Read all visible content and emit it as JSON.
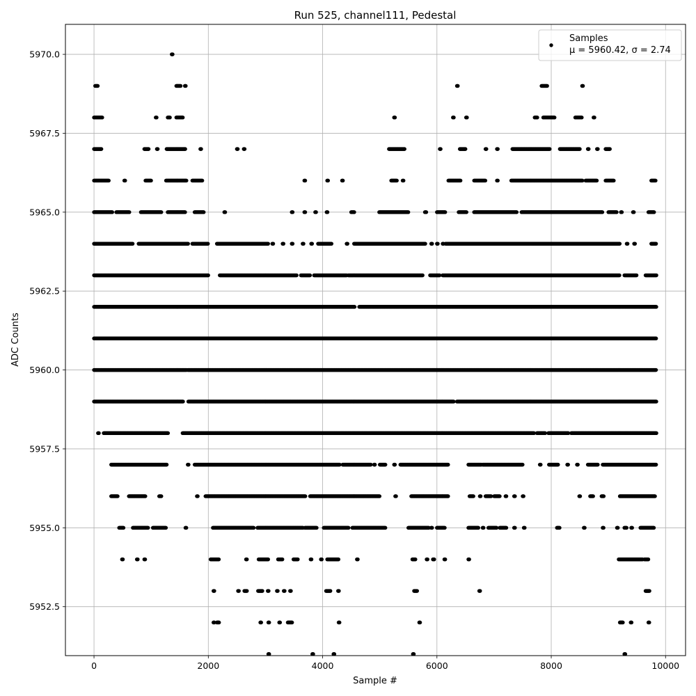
{
  "chart_data": {
    "type": "scatter",
    "title": "Run 525, channel111, Pedestal",
    "xlabel": "Sample #",
    "ylabel": "ADC Counts",
    "xlim": [
      -500,
      10350
    ],
    "ylim": [
      5950.95,
      5970.95
    ],
    "x_ticks": [
      0,
      2000,
      4000,
      6000,
      8000,
      10000
    ],
    "x_tick_labels": [
      "0",
      "2000",
      "4000",
      "6000",
      "8000",
      "10000"
    ],
    "y_ticks": [
      5952.5,
      5955.0,
      5957.5,
      5960.0,
      5962.5,
      5965.0,
      5967.5,
      5970.0
    ],
    "y_tick_labels": [
      "5952.5",
      "5955.0",
      "5957.5",
      "5960.0",
      "5962.5",
      "5965.0",
      "5967.5",
      "5970.0"
    ],
    "grid": true,
    "legend_position": "top-right",
    "marker_color": "#000000",
    "series": [
      {
        "name": "Samples",
        "stats_label": "μ = 5960.42, σ = 2.74",
        "level_ranges": [
          {
            "y": 5970,
            "x_ranges": [
              [
                1360,
                1380
              ]
            ]
          },
          {
            "y": 5969,
            "x_ranges": [
              [
                20,
                70
              ],
              [
                1440,
                1520
              ],
              [
                1590,
                1610
              ],
              [
                6350,
                6370
              ],
              [
                7830,
                7930
              ],
              [
                8540,
                8560
              ]
            ]
          },
          {
            "y": 5968,
            "x_ranges": [
              [
                0,
                150
              ],
              [
                1080,
                1100
              ],
              [
                1290,
                1330
              ],
              [
                1440,
                1560
              ],
              [
                5250,
                5270
              ],
              [
                6280,
                6300
              ],
              [
                6510,
                6530
              ],
              [
                7710,
                7760
              ],
              [
                7860,
                8060
              ],
              [
                8420,
                8540
              ],
              [
                8740,
                8760
              ]
            ]
          },
          {
            "y": 5967,
            "x_ranges": [
              [
                0,
                130
              ],
              [
                880,
                960
              ],
              [
                1100,
                1120
              ],
              [
                1270,
                1600
              ],
              [
                1860,
                1880
              ],
              [
                2500,
                2520
              ],
              [
                2620,
                2640
              ],
              [
                5160,
                5440
              ],
              [
                6050,
                6070
              ],
              [
                6400,
                6500
              ],
              [
                6850,
                6870
              ],
              [
                7050,
                7070
              ],
              [
                7320,
                7980
              ],
              [
                8150,
                8500
              ],
              [
                8640,
                8660
              ],
              [
                8800,
                8820
              ],
              [
                8950,
                9030
              ]
            ]
          },
          {
            "y": 5966,
            "x_ranges": [
              [
                0,
                260
              ],
              [
                530,
                550
              ],
              [
                900,
                1000
              ],
              [
                1260,
                1620
              ],
              [
                1720,
                1900
              ],
              [
                3680,
                3700
              ],
              [
                4080,
                4100
              ],
              [
                4340,
                4360
              ],
              [
                5200,
                5300
              ],
              [
                5400,
                5420
              ],
              [
                6200,
                6420
              ],
              [
                6650,
                6850
              ],
              [
                7050,
                7070
              ],
              [
                7300,
                8550
              ],
              [
                8600,
                8800
              ],
              [
                8950,
                9100
              ],
              [
                9750,
                9830
              ]
            ]
          },
          {
            "y": 5965,
            "x_ranges": [
              [
                0,
                320
              ],
              [
                390,
                620
              ],
              [
                820,
                1180
              ],
              [
                1290,
                1600
              ],
              [
                1760,
                1920
              ],
              [
                2280,
                2300
              ],
              [
                3460,
                3480
              ],
              [
                3680,
                3700
              ],
              [
                3870,
                3890
              ],
              [
                4070,
                4090
              ],
              [
                4500,
                4560
              ],
              [
                4990,
                5500
              ],
              [
                5790,
                5820
              ],
              [
                6000,
                6150
              ],
              [
                6380,
                6520
              ],
              [
                6650,
                7400
              ],
              [
                7480,
                8900
              ],
              [
                9000,
                9150
              ],
              [
                9220,
                9240
              ],
              [
                9430,
                9450
              ],
              [
                9700,
                9800
              ]
            ]
          },
          {
            "y": 5964,
            "x_ranges": [
              [
                0,
                680
              ],
              [
                780,
                1650
              ],
              [
                1720,
                2000
              ],
              [
                2150,
                3050
              ],
              [
                3120,
                3140
              ],
              [
                3300,
                3320
              ],
              [
                3460,
                3480
              ],
              [
                3650,
                3670
              ],
              [
                3800,
                3820
              ],
              [
                3920,
                4160
              ],
              [
                4420,
                4440
              ],
              [
                4550,
                5800
              ],
              [
                5900,
                5920
              ],
              [
                6000,
                6020
              ],
              [
                6100,
                6120
              ],
              [
                6150,
                9200
              ],
              [
                9320,
                9340
              ],
              [
                9450,
                9470
              ],
              [
                9750,
                9840
              ]
            ]
          },
          {
            "y": 5963,
            "x_ranges": [
              [
                0,
                2000
              ],
              [
                2200,
                3550
              ],
              [
                3620,
                3780
              ],
              [
                3850,
                4420
              ],
              [
                4450,
                5750
              ],
              [
                5880,
                6050
              ],
              [
                6100,
                9200
              ],
              [
                9280,
                9500
              ],
              [
                9650,
                9840
              ]
            ]
          },
          {
            "y": 5962,
            "x_ranges": [
              [
                0,
                4560
              ],
              [
                4640,
                9840
              ]
            ]
          },
          {
            "y": 5961,
            "x_ranges": [
              [
                0,
                9840
              ]
            ]
          },
          {
            "y": 5960,
            "x_ranges": [
              [
                0,
                1620
              ],
              [
                1640,
                9840
              ]
            ]
          },
          {
            "y": 5959,
            "x_ranges": [
              [
                0,
                1560
              ],
              [
                1650,
                6300
              ],
              [
                6350,
                9840
              ]
            ]
          },
          {
            "y": 5958,
            "x_ranges": [
              [
                70,
                90
              ],
              [
                170,
                1300
              ],
              [
                1550,
                7700
              ],
              [
                7750,
                7900
              ],
              [
                7950,
                8300
              ],
              [
                8350,
                9840
              ]
            ]
          },
          {
            "y": 5957,
            "x_ranges": [
              [
                300,
                1280
              ],
              [
                1640,
                1660
              ],
              [
                1760,
                4300
              ],
              [
                4350,
                4850
              ],
              [
                4900,
                4920
              ],
              [
                5000,
                5100
              ],
              [
                5250,
                5270
              ],
              [
                5360,
                6200
              ],
              [
                6550,
                6780
              ],
              [
                6800,
                7500
              ],
              [
                7800,
                7820
              ],
              [
                7960,
                8120
              ],
              [
                8280,
                8300
              ],
              [
                8450,
                8470
              ],
              [
                8640,
                8820
              ],
              [
                8900,
                9840
              ]
            ]
          },
          {
            "y": 5956,
            "x_ranges": [
              [
                300,
                420
              ],
              [
                610,
                900
              ],
              [
                1140,
                1180
              ],
              [
                1800,
                1820
              ],
              [
                1950,
                3700
              ],
              [
                3780,
                5000
              ],
              [
                5270,
                5290
              ],
              [
                5550,
                6200
              ],
              [
                6570,
                6640
              ],
              [
                6750,
                6770
              ],
              [
                6850,
                6950
              ],
              [
                7000,
                7100
              ],
              [
                7200,
                7220
              ],
              [
                7350,
                7370
              ],
              [
                7500,
                7520
              ],
              [
                8490,
                8510
              ],
              [
                8680,
                8740
              ],
              [
                8880,
                8920
              ],
              [
                9200,
                9820
              ]
            ]
          },
          {
            "y": 5955,
            "x_ranges": [
              [
                440,
                520
              ],
              [
                680,
                950
              ],
              [
                1030,
                1260
              ],
              [
                1600,
                1620
              ],
              [
                2080,
                2800
              ],
              [
                2860,
                3660
              ],
              [
                3690,
                3900
              ],
              [
                4020,
                4460
              ],
              [
                4520,
                5100
              ],
              [
                5500,
                5860
              ],
              [
                5900,
                5920
              ],
              [
                6000,
                6140
              ],
              [
                6550,
                6730
              ],
              [
                6800,
                6820
              ],
              [
                6900,
                7050
              ],
              [
                7100,
                7220
              ],
              [
                7350,
                7370
              ],
              [
                7520,
                7540
              ],
              [
                8100,
                8150
              ],
              [
                8570,
                8590
              ],
              [
                8900,
                8920
              ],
              [
                9150,
                9170
              ],
              [
                9280,
                9320
              ],
              [
                9400,
                9420
              ],
              [
                9560,
                9800
              ]
            ]
          },
          {
            "y": 5954,
            "x_ranges": [
              [
                490,
                510
              ],
              [
                750,
                770
              ],
              [
                880,
                900
              ],
              [
                2040,
                2190
              ],
              [
                2660,
                2680
              ],
              [
                2880,
                3050
              ],
              [
                3220,
                3300
              ],
              [
                3490,
                3570
              ],
              [
                3790,
                3810
              ],
              [
                3970,
                3990
              ],
              [
                4080,
                4280
              ],
              [
                4600,
                4620
              ],
              [
                5570,
                5630
              ],
              [
                5820,
                5840
              ],
              [
                5930,
                5960
              ],
              [
                6130,
                6150
              ],
              [
                6550,
                6570
              ],
              [
                9180,
                9600
              ],
              [
                9630,
                9700
              ]
            ]
          },
          {
            "y": 5953,
            "x_ranges": [
              [
                2090,
                2110
              ],
              [
                2520,
                2540
              ],
              [
                2630,
                2680
              ],
              [
                2870,
                2950
              ],
              [
                3040,
                3060
              ],
              [
                3200,
                3220
              ],
              [
                3320,
                3340
              ],
              [
                3430,
                3450
              ],
              [
                4060,
                4140
              ],
              [
                4270,
                4290
              ],
              [
                5600,
                5660
              ],
              [
                6740,
                6760
              ],
              [
                9650,
                9720
              ]
            ]
          },
          {
            "y": 5952,
            "x_ranges": [
              [
                2090,
                2110
              ],
              [
                2150,
                2190
              ],
              [
                2910,
                2930
              ],
              [
                3050,
                3070
              ],
              [
                3240,
                3260
              ],
              [
                3390,
                3470
              ],
              [
                4280,
                4300
              ],
              [
                5690,
                5710
              ],
              [
                9200,
                9260
              ],
              [
                9390,
                9410
              ],
              [
                9700,
                9720
              ]
            ]
          },
          {
            "y": 5951,
            "x_ranges": [
              [
                3050,
                3070
              ],
              [
                3820,
                3840
              ],
              [
                4190,
                4210
              ],
              [
                5580,
                5600
              ],
              [
                9280,
                9300
              ]
            ]
          }
        ]
      }
    ]
  }
}
